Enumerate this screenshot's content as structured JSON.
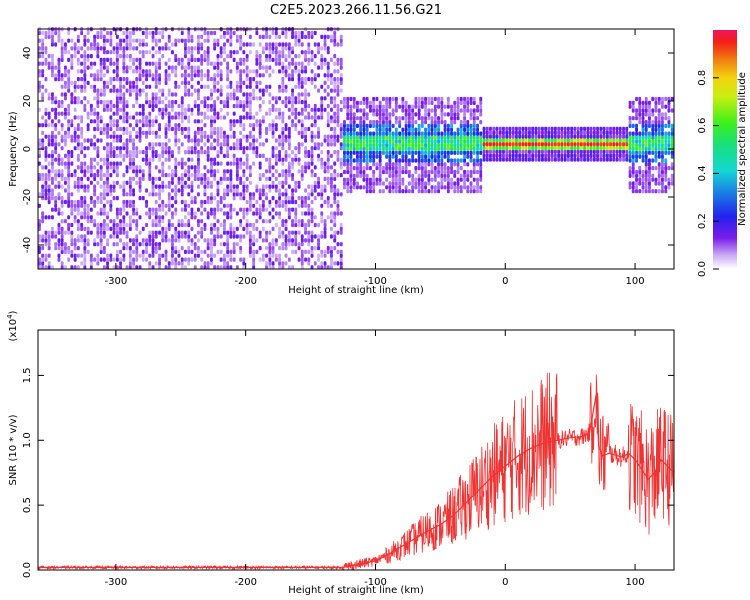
{
  "title": "C2E5.2023.266.11.56.G21",
  "chart_data": [
    {
      "type": "heatmap",
      "xlabel": "Height of straight line (km)",
      "ylabel": "Frequency (Hz)",
      "xlim": [
        -360,
        130
      ],
      "ylim": [
        -50,
        50
      ],
      "x_ticks": [
        "-300",
        "-200",
        "-100",
        "0",
        "100"
      ],
      "y_ticks": [
        "-40",
        "-20",
        "0",
        "20",
        "40"
      ],
      "colorbar": {
        "label": "Normalized spectral amplitude",
        "range": [
          0,
          1
        ],
        "ticks": [
          "0.0",
          "0.2",
          "0.4",
          "0.6",
          "0.8"
        ]
      },
      "signal_band": {
        "x_start": -125,
        "x_end": 130,
        "center_frequency": 1.5
      }
    },
    {
      "type": "line",
      "xlabel": "Height of straight line (km)",
      "ylabel": "SNR (10 * v/v)",
      "y_multiplier": "(x10",
      "y_multiplier_exp": "4",
      "y_multiplier_close": ")",
      "xlim": [
        -360,
        130
      ],
      "ylim": [
        0,
        1.85
      ],
      "x_ticks": [
        "-300",
        "-200",
        "-100",
        "0",
        "100"
      ],
      "y_ticks": [
        "0.0",
        "0.5",
        "1.0",
        "1.5"
      ],
      "color": "#ee3333",
      "series": [
        {
          "x": [
            -360,
            -300,
            -250,
            -200,
            -150,
            -125,
            -110,
            -100,
            -90,
            -80,
            -70,
            -60,
            -50,
            -40,
            -30,
            -20,
            -10,
            0,
            10,
            20,
            30,
            40,
            50,
            60,
            65,
            70,
            72,
            75,
            80,
            90,
            95,
            100,
            105,
            110,
            115,
            120,
            125,
            130
          ],
          "values": [
            0.02,
            0.02,
            0.02,
            0.02,
            0.02,
            0.02,
            0.05,
            0.07,
            0.12,
            0.18,
            0.24,
            0.3,
            0.35,
            0.42,
            0.52,
            0.62,
            0.72,
            0.8,
            0.88,
            0.94,
            0.98,
            1.0,
            1.02,
            1.03,
            1.06,
            1.35,
            0.95,
            0.88,
            0.9,
            0.87,
            0.9,
            0.85,
            0.78,
            0.7,
            0.75,
            0.85,
            0.8,
            0.75
          ]
        }
      ]
    }
  ]
}
